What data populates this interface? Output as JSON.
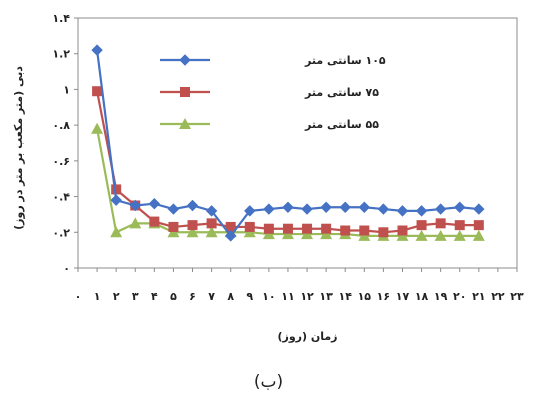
{
  "chart_data": {
    "type": "line",
    "xlabel": "زمان (روز)",
    "ylabel": "دبی (متر مکعب بر متر در روز)",
    "x_ticks": [
      "۰",
      "۱",
      "۲",
      "۳",
      "۴",
      "۵",
      "۶",
      "۷",
      "۸",
      "۹",
      "۱۰",
      "۱۱",
      "۱۲",
      "۱۳",
      "۱۴",
      "۱۵",
      "۱۶",
      "۱۷",
      "۱۸",
      "۱۹",
      "۲۰",
      "۲۱",
      "۲۲",
      "۲۳"
    ],
    "y_ticks": [
      "۰",
      "۰.۲",
      "۰.۴",
      "۰.۶",
      "۰.۸",
      "۱",
      "۱.۲",
      "۱.۴"
    ],
    "xlim": [
      0,
      23
    ],
    "ylim": [
      0,
      1.4
    ],
    "grid": false,
    "legend_position": "inside-top-center",
    "series": [
      {
        "name": "۱۰۵ سانتی متر",
        "color": "#4572c4",
        "marker": "diamond",
        "x": [
          1,
          2,
          3,
          4,
          5,
          6,
          7,
          8,
          9,
          10,
          11,
          12,
          13,
          14,
          15,
          16,
          17,
          18,
          19,
          20,
          21
        ],
        "y": [
          1.22,
          0.38,
          0.35,
          0.36,
          0.33,
          0.35,
          0.32,
          0.18,
          0.32,
          0.33,
          0.34,
          0.33,
          0.34,
          0.34,
          0.34,
          0.33,
          0.32,
          0.32,
          0.33,
          0.34,
          0.33
        ]
      },
      {
        "name": "۷۵ سانتی متر",
        "color": "#c0504d",
        "marker": "square",
        "x": [
          1,
          2,
          3,
          4,
          5,
          6,
          7,
          8,
          9,
          10,
          11,
          12,
          13,
          14,
          15,
          16,
          17,
          18,
          19,
          20,
          21
        ],
        "y": [
          0.99,
          0.44,
          0.35,
          0.26,
          0.23,
          0.24,
          0.25,
          0.23,
          0.23,
          0.22,
          0.22,
          0.22,
          0.22,
          0.21,
          0.21,
          0.2,
          0.21,
          0.24,
          0.25,
          0.24,
          0.24
        ]
      },
      {
        "name": "۵۵ سانتی متر",
        "color": "#9bbb59",
        "marker": "triangle",
        "x": [
          1,
          2,
          3,
          4,
          5,
          6,
          7,
          8,
          9,
          10,
          11,
          12,
          13,
          14,
          15,
          16,
          17,
          18,
          19,
          20,
          21
        ],
        "y": [
          0.78,
          0.2,
          0.25,
          0.25,
          0.2,
          0.2,
          0.2,
          0.2,
          0.2,
          0.19,
          0.19,
          0.19,
          0.19,
          0.19,
          0.18,
          0.18,
          0.18,
          0.18,
          0.18,
          0.18,
          0.18
        ]
      }
    ]
  },
  "caption": "(ب)"
}
